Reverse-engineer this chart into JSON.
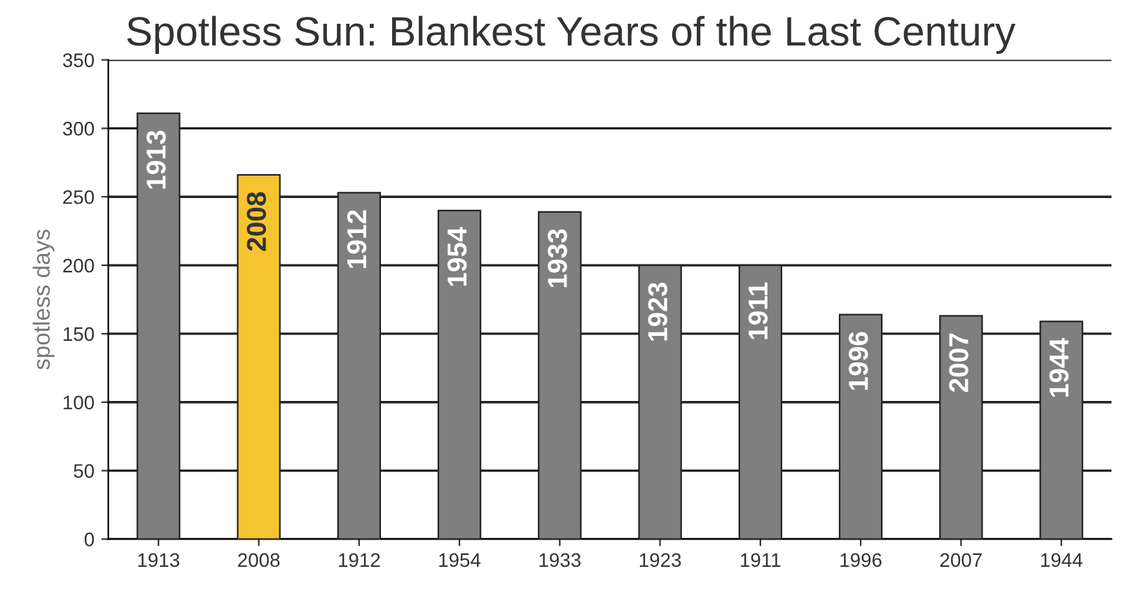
{
  "chart_data": {
    "type": "bar",
    "title": "Spotless Sun: Blankest Years of the Last Century",
    "ylabel": "spotless days",
    "categories": [
      "1913",
      "2008",
      "1912",
      "1954",
      "1933",
      "1923",
      "1911",
      "1996",
      "2007",
      "1944"
    ],
    "values": [
      311,
      266,
      253,
      240,
      239,
      200,
      200,
      164,
      163,
      159
    ],
    "colors": [
      "#7f7f7f",
      "#f5c431",
      "#7f7f7f",
      "#7f7f7f",
      "#7f7f7f",
      "#7f7f7f",
      "#7f7f7f",
      "#7f7f7f",
      "#7f7f7f",
      "#7f7f7f"
    ],
    "annotations": [
      {
        "text": "1913",
        "x": "1913",
        "y": 311
      },
      {
        "text": "2008",
        "x": "2008",
        "y": 266
      },
      {
        "text": "1912",
        "x": "1912",
        "y": 253
      },
      {
        "text": "1954",
        "x": "1954",
        "y": 240
      },
      {
        "text": "1933",
        "x": "1933",
        "y": 239
      },
      {
        "text": "1923",
        "x": "1923",
        "y": 200
      },
      {
        "text": "1911",
        "x": "1911",
        "y": 200
      },
      {
        "text": "1996",
        "x": "1996",
        "y": 164
      },
      {
        "text": "2007",
        "x": "2007",
        "y": 163
      },
      {
        "text": "1944",
        "x": "1944",
        "y": 159
      }
    ],
    "ylim": [
      0,
      350
    ],
    "yticks": [
      0,
      50,
      100,
      150,
      200,
      250,
      300,
      350
    ],
    "grid": "y"
  }
}
